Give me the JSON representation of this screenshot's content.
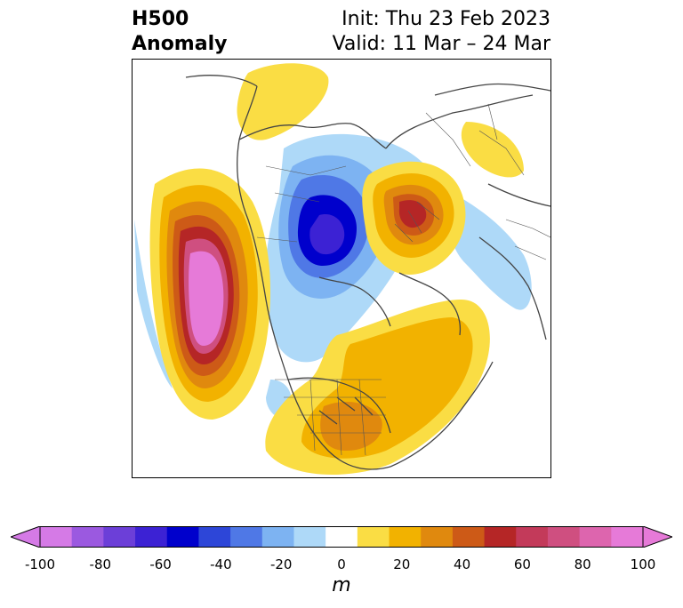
{
  "title": {
    "left_line1": "H500",
    "left_line2": "Anomaly",
    "init": "Init: Thu 23 Feb 2023",
    "valid": "Valid: 11 Mar – 24 Mar"
  },
  "map": {
    "projection": "north polar stereographic",
    "field": "500 hPa geopotential height anomaly",
    "features": [
      {
        "name": "pink-maximum",
        "region": "northeast Pacific / Gulf of Alaska",
        "value_m": 100
      },
      {
        "name": "blue-minimum",
        "region": "Baffin Bay / Canadian Arctic",
        "value_m": -70
      },
      {
        "name": "red-maximum",
        "region": "Scandinavia / northern Europe",
        "value_m": 60
      },
      {
        "name": "orange-ridge",
        "region": "eastern United States / western Atlantic",
        "value_m": 40
      },
      {
        "name": "blue-trough",
        "region": "western Russia",
        "value_m": -20
      }
    ]
  },
  "colorbar": {
    "ticks": [
      "-100",
      "-80",
      "-60",
      "-40",
      "-20",
      "0",
      "20",
      "40",
      "60",
      "80",
      "100"
    ],
    "unit": "m",
    "extend": "both",
    "colors": [
      "#d57ae6",
      "#9b59e0",
      "#6c3fd8",
      "#3c22d4",
      "#0000cc",
      "#2d46d8",
      "#4f78e6",
      "#7db3f2",
      "#aed9f8",
      "#ffffff",
      "#fadd44",
      "#f2b200",
      "#e0890e",
      "#cd5a17",
      "#b52626",
      "#c33a5a",
      "#cf4f80",
      "#dd65ae",
      "#e67ad8"
    ],
    "over_color": "#e67ad8",
    "under_color": "#d57ae6"
  }
}
